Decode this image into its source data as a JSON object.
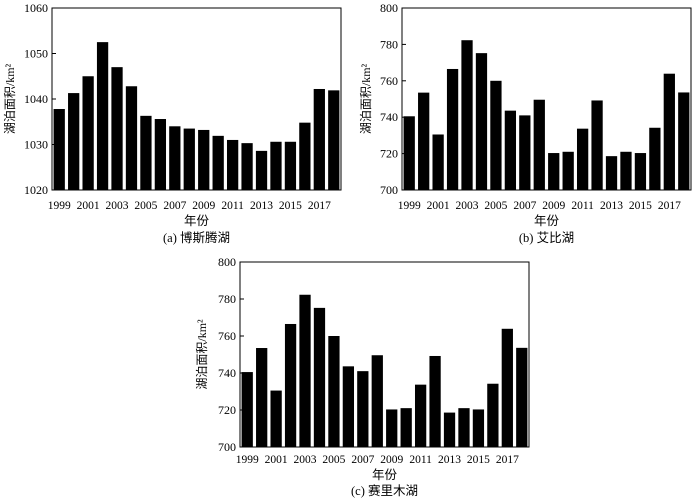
{
  "chart_data": [
    {
      "type": "bar",
      "caption": "(a) 博斯腾湖",
      "xlabel": "年份",
      "ylabel": "湖泊面积/km²",
      "ylim": [
        1020,
        1060
      ],
      "yticks": [
        1020,
        1030,
        1040,
        1050,
        1060
      ],
      "categories": [
        "1999",
        "2000",
        "2001",
        "2002",
        "2003",
        "2004",
        "2005",
        "2006",
        "2007",
        "2008",
        "2009",
        "2010",
        "2011",
        "2012",
        "2013",
        "2014",
        "2015",
        "2016",
        "2017",
        "2018"
      ],
      "xtick_labels": [
        "1999",
        "2001",
        "2003",
        "2005",
        "2007",
        "2009",
        "2011",
        "2013",
        "2015",
        "2017"
      ],
      "values": [
        1037.8,
        1041.3,
        1045.0,
        1052.5,
        1047.0,
        1042.8,
        1036.3,
        1035.6,
        1034.0,
        1033.5,
        1033.2,
        1031.9,
        1031.0,
        1030.3,
        1028.6,
        1030.6,
        1030.6,
        1034.8,
        1042.2,
        1041.9
      ],
      "grid": false
    },
    {
      "type": "bar",
      "caption": "(b) 艾比湖",
      "xlabel": "年份",
      "ylabel": "湖泊面积/km²",
      "ylim": [
        700,
        800
      ],
      "yticks": [
        700,
        720,
        740,
        760,
        780,
        800
      ],
      "categories": [
        "1999",
        "2000",
        "2001",
        "2002",
        "2003",
        "2004",
        "2005",
        "2006",
        "2007",
        "2008",
        "2009",
        "2010",
        "2011",
        "2012",
        "2013",
        "2014",
        "2015",
        "2016",
        "2017",
        "2018"
      ],
      "xtick_labels": [
        "1999",
        "2001",
        "2003",
        "2005",
        "2007",
        "2009",
        "2011",
        "2013",
        "2015",
        "2017"
      ],
      "values": [
        740.5,
        753.5,
        730.5,
        766.5,
        782.3,
        775.2,
        760.0,
        743.6,
        741.0,
        749.6,
        720.3,
        721.0,
        733.7,
        749.2,
        718.6,
        721.0,
        720.3,
        734.2,
        763.9,
        753.6
      ],
      "grid": false
    },
    {
      "type": "bar",
      "caption": "(c) 赛里木湖",
      "xlabel": "年份",
      "ylabel": "湖泊面积/km²",
      "ylim": [
        700,
        800
      ],
      "yticks": [
        700,
        720,
        740,
        760,
        780,
        800
      ],
      "categories": [
        "1999",
        "2000",
        "2001",
        "2002",
        "2003",
        "2004",
        "2005",
        "2006",
        "2007",
        "2008",
        "2009",
        "2010",
        "2011",
        "2012",
        "2013",
        "2014",
        "2015",
        "2016",
        "2017",
        "2018"
      ],
      "xtick_labels": [
        "1999",
        "2001",
        "2003",
        "2005",
        "2007",
        "2009",
        "2011",
        "2013",
        "2015",
        "2017"
      ],
      "values": [
        740.5,
        753.5,
        730.5,
        766.5,
        782.3,
        775.2,
        760.0,
        743.6,
        741.0,
        749.6,
        720.3,
        721.0,
        733.7,
        749.2,
        718.6,
        721.0,
        720.3,
        734.2,
        763.9,
        753.6
      ],
      "grid": false
    }
  ]
}
